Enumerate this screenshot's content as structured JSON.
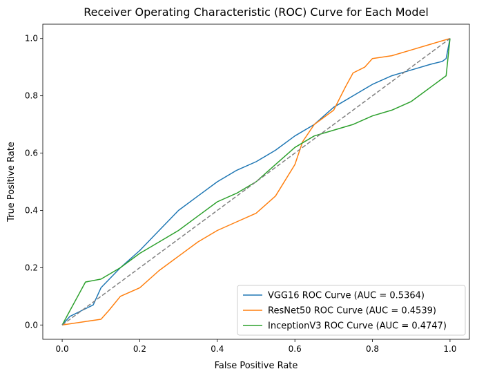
{
  "chart_data": {
    "type": "line",
    "title": "Receiver Operating Characteristic (ROC) Curve for Each Model",
    "xlabel": "False Positive Rate",
    "ylabel": "True Positive Rate",
    "xlim": [
      -0.05,
      1.05
    ],
    "ylim": [
      -0.05,
      1.05
    ],
    "xticks": [
      0.0,
      0.2,
      0.4,
      0.6,
      0.8,
      1.0
    ],
    "yticks": [
      0.0,
      0.2,
      0.4,
      0.6,
      0.8,
      1.0
    ],
    "xtick_labels": [
      "0.0",
      "0.2",
      "0.4",
      "0.6",
      "0.8",
      "1.0"
    ],
    "ytick_labels": [
      "0.0",
      "0.2",
      "0.4",
      "0.6",
      "0.8",
      "1.0"
    ],
    "grid": false,
    "legend_position": "lower-right",
    "series": [
      {
        "name": "VGG16 ROC Curve (AUC = 0.5364)",
        "color": "#1f77b4",
        "x": [
          0.0,
          0.02,
          0.05,
          0.08,
          0.1,
          0.15,
          0.2,
          0.25,
          0.3,
          0.35,
          0.4,
          0.45,
          0.5,
          0.55,
          0.6,
          0.65,
          0.7,
          0.75,
          0.8,
          0.85,
          0.9,
          0.95,
          0.98,
          0.99,
          1.0
        ],
        "y": [
          0.0,
          0.03,
          0.05,
          0.07,
          0.13,
          0.2,
          0.26,
          0.33,
          0.4,
          0.45,
          0.5,
          0.54,
          0.57,
          0.61,
          0.66,
          0.7,
          0.76,
          0.8,
          0.84,
          0.87,
          0.89,
          0.91,
          0.92,
          0.93,
          1.0
        ]
      },
      {
        "name": "ResNet50 ROC Curve (AUC = 0.4539)",
        "color": "#ff7f0e",
        "x": [
          0.0,
          0.05,
          0.1,
          0.12,
          0.15,
          0.2,
          0.25,
          0.3,
          0.35,
          0.4,
          0.45,
          0.5,
          0.55,
          0.6,
          0.62,
          0.65,
          0.7,
          0.73,
          0.75,
          0.78,
          0.8,
          0.85,
          0.9,
          0.95,
          1.0
        ],
        "y": [
          0.0,
          0.01,
          0.02,
          0.05,
          0.1,
          0.13,
          0.19,
          0.24,
          0.29,
          0.33,
          0.36,
          0.39,
          0.45,
          0.56,
          0.64,
          0.7,
          0.75,
          0.83,
          0.88,
          0.9,
          0.93,
          0.94,
          0.96,
          0.98,
          1.0
        ]
      },
      {
        "name": "InceptionV3 ROC Curve (AUC = 0.4747)",
        "color": "#2ca02c",
        "x": [
          0.0,
          0.02,
          0.04,
          0.06,
          0.1,
          0.15,
          0.2,
          0.25,
          0.3,
          0.35,
          0.4,
          0.45,
          0.5,
          0.55,
          0.6,
          0.65,
          0.7,
          0.75,
          0.8,
          0.85,
          0.9,
          0.95,
          0.99,
          1.0
        ],
        "y": [
          0.0,
          0.05,
          0.1,
          0.15,
          0.16,
          0.2,
          0.25,
          0.29,
          0.33,
          0.38,
          0.43,
          0.46,
          0.5,
          0.56,
          0.62,
          0.66,
          0.68,
          0.7,
          0.73,
          0.75,
          0.78,
          0.83,
          0.87,
          1.0
        ]
      },
      {
        "name": "",
        "color": "#808080",
        "dashed": true,
        "x": [
          0.0,
          1.0
        ],
        "y": [
          0.0,
          1.0
        ]
      }
    ]
  }
}
